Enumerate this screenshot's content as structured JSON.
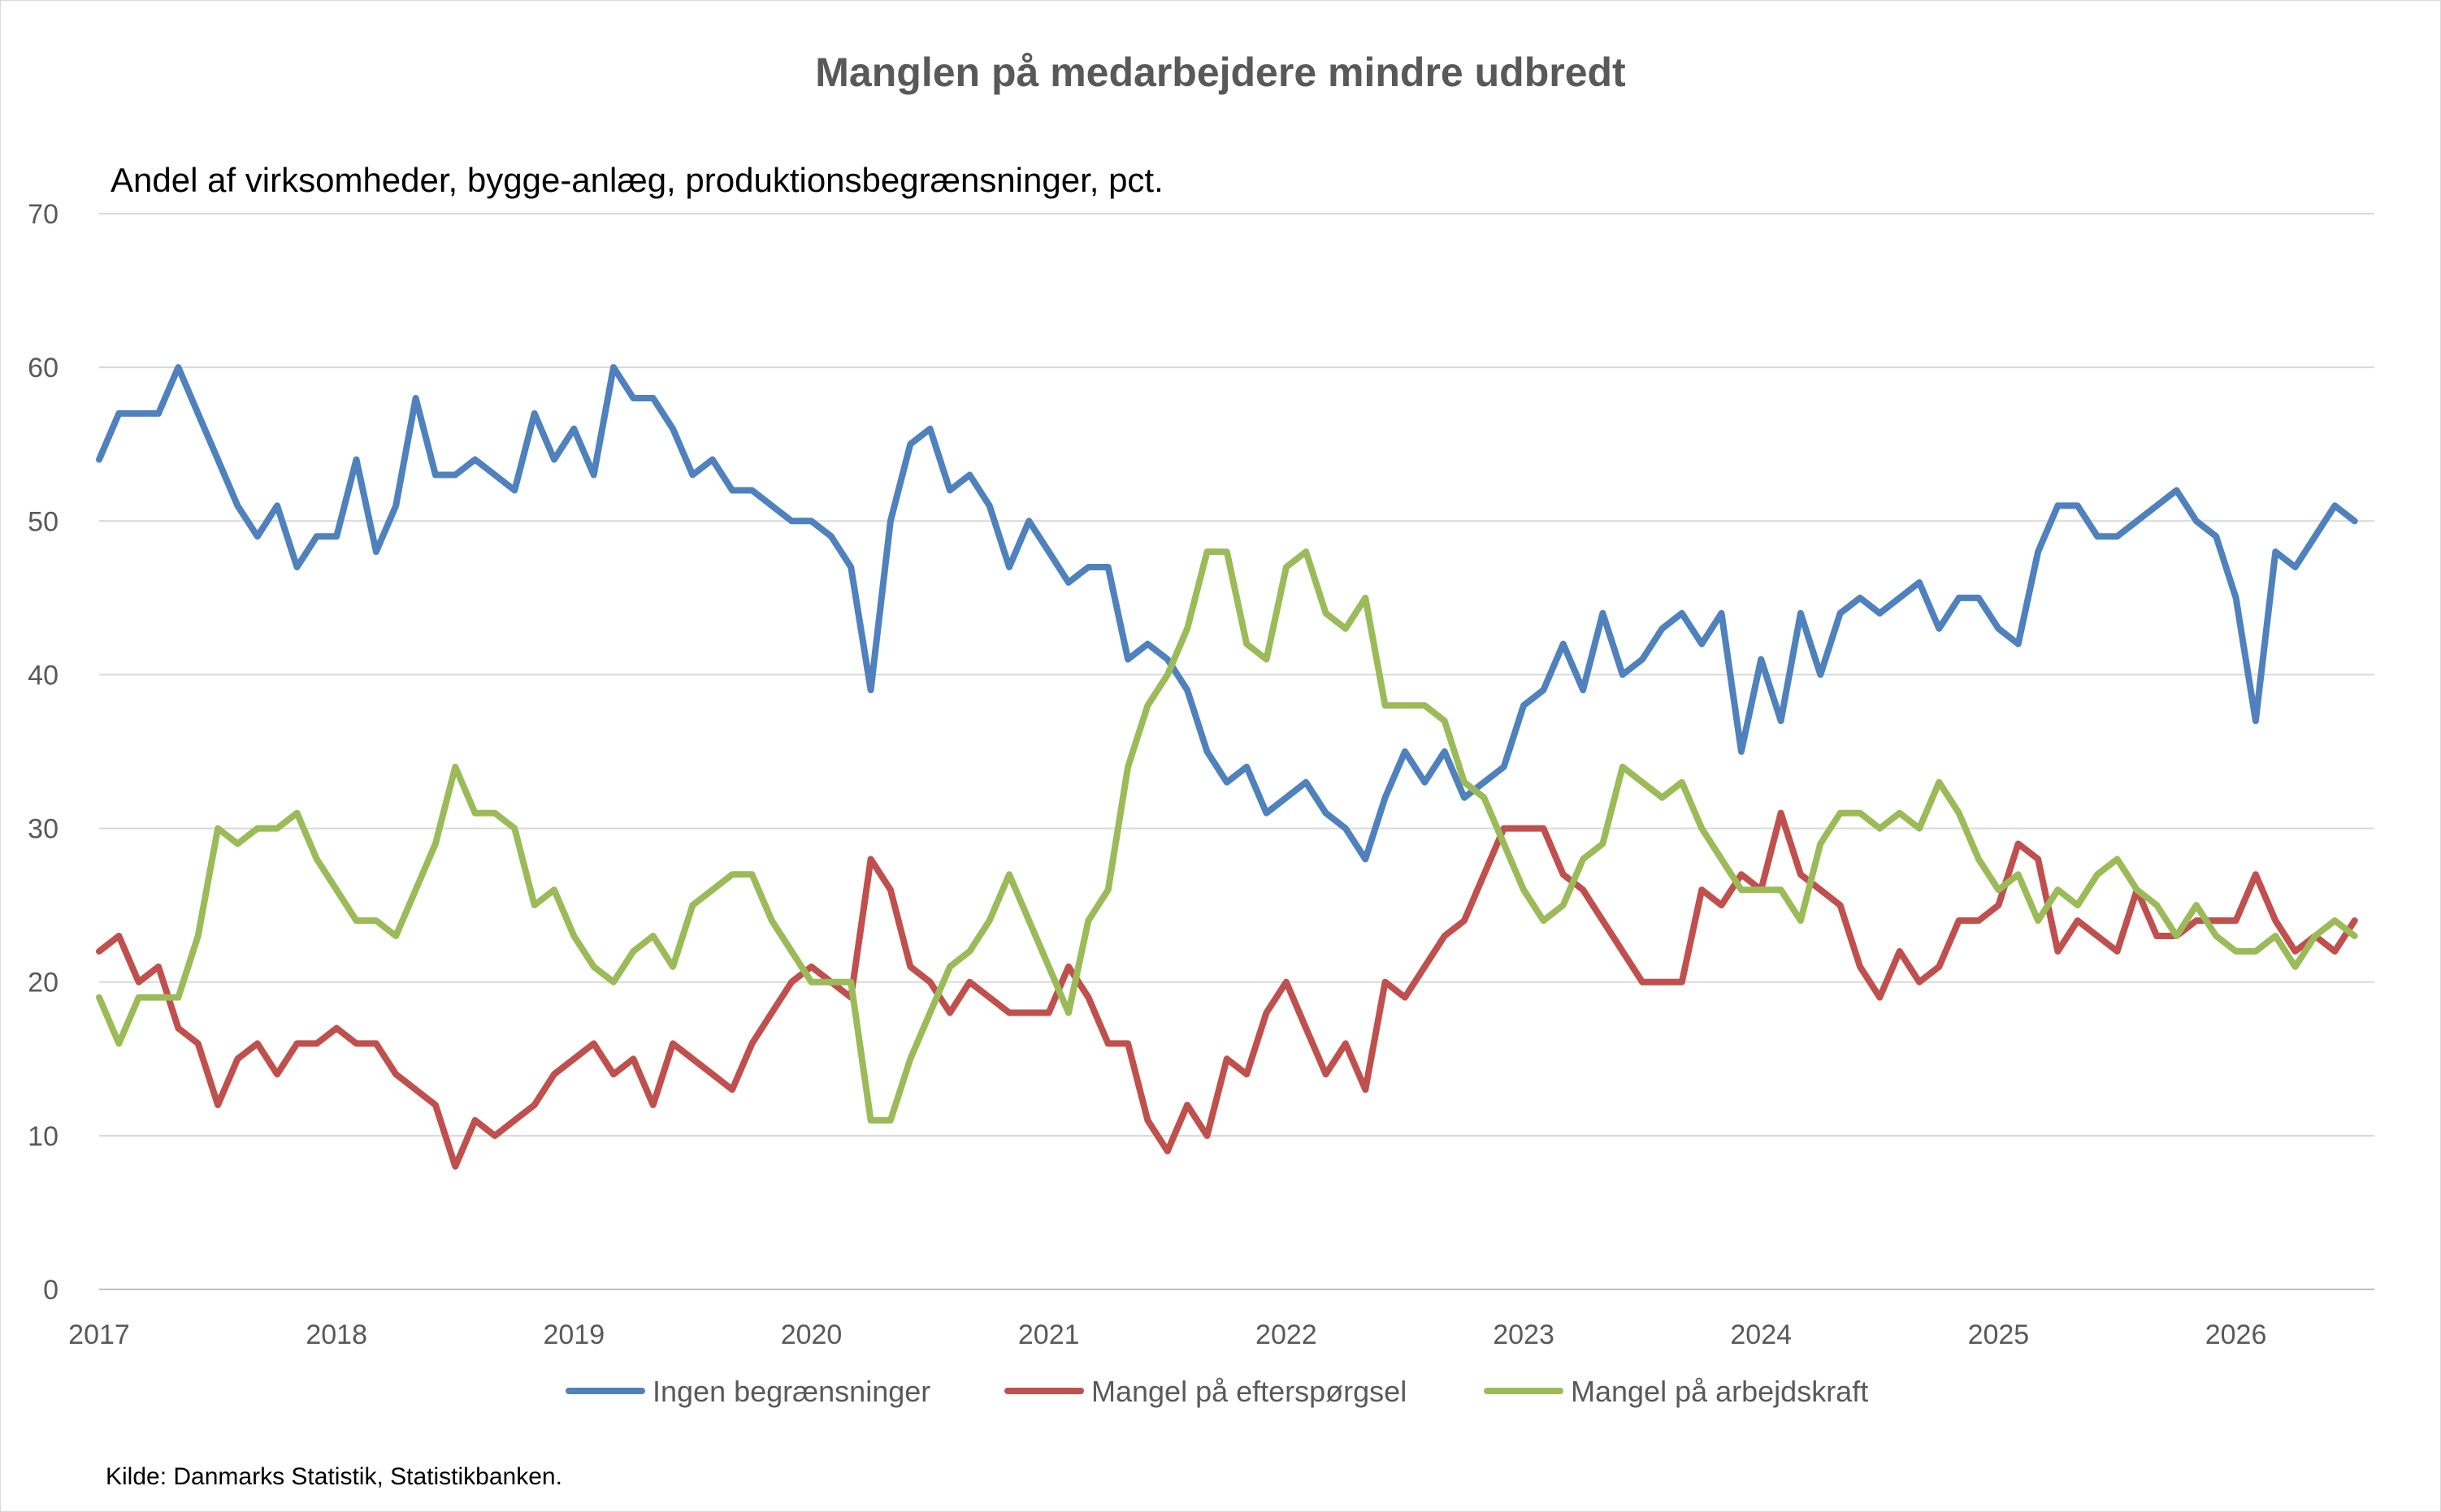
{
  "chart_data": {
    "type": "line",
    "title": "Manglen på medarbejdere mindre udbredt",
    "subtitle": "Andel af virksomheder,  bygge-anlæg, produktionsbegrænsninger, pct.",
    "source": "Kilde: Danmarks Statistik, Statistikbanken.",
    "x_start": "2017-01",
    "frequency": "monthly",
    "x_ticks": [
      "2017",
      "2018",
      "2019",
      "2020",
      "2021",
      "2022",
      "2023",
      "2024",
      "2025",
      "2026"
    ],
    "ylim": [
      0,
      70
    ],
    "y_ticks": [
      0,
      10,
      20,
      30,
      40,
      50,
      60,
      70
    ],
    "grid": true,
    "legend_position": "bottom",
    "series": [
      {
        "name": "Ingen begrænsninger",
        "color": "#4F81BD",
        "values": [
          54,
          57,
          57,
          57,
          60,
          57,
          54,
          51,
          49,
          51,
          47,
          49,
          49,
          54,
          48,
          51,
          58,
          53,
          53,
          54,
          53,
          52,
          57,
          54,
          56,
          53,
          60,
          58,
          58,
          56,
          53,
          54,
          52,
          52,
          51,
          50,
          50,
          49,
          47,
          39,
          50,
          55,
          56,
          52,
          53,
          51,
          47,
          50,
          48,
          46,
          47,
          47,
          41,
          42,
          41,
          39,
          35,
          33,
          34,
          31,
          32,
          33,
          31,
          30,
          28,
          32,
          35,
          33,
          35,
          32,
          33,
          34,
          38,
          39,
          42,
          39,
          44,
          40,
          41,
          43,
          44,
          42,
          44,
          35,
          41,
          37,
          44,
          40,
          44,
          45,
          44,
          45,
          46,
          43,
          45,
          45,
          43,
          42,
          48,
          51,
          51,
          49,
          49,
          50,
          51,
          52,
          50,
          49,
          45,
          37,
          48,
          47,
          49,
          51,
          50
        ]
      },
      {
        "name": "Mangel på efterspørgsel",
        "color": "#C0504D",
        "values": [
          22,
          23,
          20,
          21,
          17,
          16,
          12,
          15,
          16,
          14,
          16,
          16,
          17,
          16,
          16,
          14,
          13,
          12,
          8,
          11,
          10,
          11,
          12,
          14,
          15,
          16,
          14,
          15,
          12,
          16,
          15,
          14,
          13,
          16,
          18,
          20,
          21,
          20,
          19,
          28,
          26,
          21,
          20,
          18,
          20,
          19,
          18,
          18,
          18,
          21,
          19,
          16,
          16,
          11,
          9,
          12,
          10,
          15,
          14,
          18,
          20,
          17,
          14,
          16,
          13,
          20,
          19,
          21,
          23,
          24,
          27,
          30,
          30,
          30,
          27,
          26,
          24,
          22,
          20,
          20,
          20,
          26,
          25,
          27,
          26,
          31,
          27,
          26,
          25,
          21,
          19,
          22,
          20,
          21,
          24,
          24,
          25,
          29,
          28,
          22,
          24,
          23,
          22,
          26,
          23,
          23,
          24,
          24,
          24,
          27,
          24,
          22,
          23,
          22,
          24
        ]
      },
      {
        "name": "Mangel på arbejdskraft",
        "color": "#9BBB59",
        "values": [
          19,
          16,
          19,
          19,
          19,
          23,
          30,
          29,
          30,
          30,
          31,
          28,
          26,
          24,
          24,
          23,
          26,
          29,
          34,
          31,
          31,
          30,
          25,
          26,
          23,
          21,
          20,
          22,
          23,
          21,
          25,
          26,
          27,
          27,
          24,
          22,
          20,
          20,
          20,
          11,
          11,
          15,
          18,
          21,
          22,
          24,
          27,
          24,
          21,
          18,
          24,
          26,
          34,
          38,
          40,
          43,
          48,
          48,
          42,
          41,
          47,
          48,
          44,
          43,
          45,
          38,
          38,
          38,
          37,
          33,
          32,
          29,
          26,
          24,
          25,
          28,
          29,
          34,
          33,
          32,
          33,
          30,
          28,
          26,
          26,
          26,
          24,
          29,
          31,
          31,
          30,
          31,
          30,
          33,
          31,
          28,
          26,
          27,
          24,
          26,
          25,
          27,
          28,
          26,
          25,
          23,
          25,
          23,
          22,
          22,
          23,
          21,
          23,
          24,
          23
        ]
      }
    ]
  }
}
